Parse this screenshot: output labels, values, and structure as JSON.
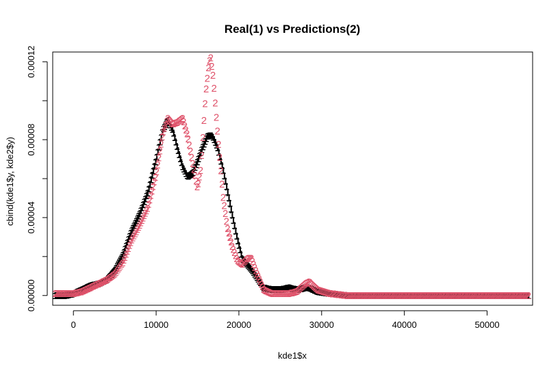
{
  "chart_data": {
    "type": "scatter",
    "title": "Real(1) vs Predictions(2)",
    "xlabel": "kde1$x",
    "ylabel": "cbind(kde1$y, kde2$y)",
    "xlim": [
      -2500,
      55500
    ],
    "ylim": [
      -5e-06,
      0.000125
    ],
    "x_ticks": [
      0,
      10000,
      20000,
      30000,
      40000,
      50000
    ],
    "x_tick_labels": [
      "0",
      "10000",
      "20000",
      "30000",
      "40000",
      "50000"
    ],
    "y_ticks": [
      0,
      2e-05,
      4e-05,
      6e-05,
      8e-05,
      0.0001,
      0.00012
    ],
    "y_tick_labels": [
      "0.00000",
      "0.00004",
      "0.00008",
      "0.00012"
    ],
    "y_labeled_ticks": [
      0,
      4e-05,
      8e-05,
      0.00012
    ],
    "grid": false,
    "series": [
      {
        "marker": "1",
        "color": "#000000",
        "points": [
          [
            -2200,
            0.0
          ],
          [
            -1000,
            0.0
          ],
          [
            0,
            1e-06
          ],
          [
            1000,
            3e-06
          ],
          [
            2000,
            5e-06
          ],
          [
            3000,
            6e-06
          ],
          [
            4000,
            8e-06
          ],
          [
            5000,
            1.3e-05
          ],
          [
            6000,
            2.1e-05
          ],
          [
            7000,
            3.3e-05
          ],
          [
            8000,
            4.2e-05
          ],
          [
            9000,
            5.3e-05
          ],
          [
            10000,
            7e-05
          ],
          [
            10800,
            8.5e-05
          ],
          [
            11400,
            9e-05
          ],
          [
            12000,
            8.5e-05
          ],
          [
            12600,
            7.5e-05
          ],
          [
            13200,
            6.6e-05
          ],
          [
            13800,
            6.1e-05
          ],
          [
            14400,
            6.3e-05
          ],
          [
            15000,
            6.9e-05
          ],
          [
            15600,
            7.6e-05
          ],
          [
            16200,
            8.2e-05
          ],
          [
            16800,
            8.2e-05
          ],
          [
            17400,
            7.6e-05
          ],
          [
            18000,
            6.6e-05
          ],
          [
            18600,
            5.4e-05
          ],
          [
            19200,
            4.1e-05
          ],
          [
            19800,
            2.9e-05
          ],
          [
            20400,
            1.9e-05
          ],
          [
            21000,
            1.6e-05
          ],
          [
            21600,
            1.3e-05
          ],
          [
            22200,
            9e-06
          ],
          [
            23000,
            4e-06
          ],
          [
            24000,
            3e-06
          ],
          [
            25000,
            3e-06
          ],
          [
            26000,
            4e-06
          ],
          [
            27000,
            3e-06
          ],
          [
            28000,
            4e-06
          ],
          [
            28500,
            4e-06
          ],
          [
            29500,
            2e-06
          ],
          [
            31000,
            1e-06
          ],
          [
            33000,
            0.0
          ],
          [
            38000,
            0.0
          ],
          [
            44000,
            0.0
          ],
          [
            50000,
            0.0
          ],
          [
            55000,
            0.0
          ]
        ]
      },
      {
        "marker": "2",
        "color": "#df536b",
        "points": [
          [
            -2200,
            1e-06
          ],
          [
            -1000,
            1e-06
          ],
          [
            0,
            1e-06
          ],
          [
            1000,
            2e-06
          ],
          [
            2000,
            4e-06
          ],
          [
            3000,
            6e-06
          ],
          [
            4000,
            8e-06
          ],
          [
            5000,
            1.1e-05
          ],
          [
            6000,
            1.7e-05
          ],
          [
            7000,
            2.8e-05
          ],
          [
            8000,
            3.6e-05
          ],
          [
            9000,
            4.5e-05
          ],
          [
            10000,
            6.2e-05
          ],
          [
            10800,
            8.3e-05
          ],
          [
            11400,
            9.1e-05
          ],
          [
            12000,
            8.8e-05
          ],
          [
            12600,
            8.9e-05
          ],
          [
            13200,
            9.1e-05
          ],
          [
            13800,
            8.2e-05
          ],
          [
            14400,
            6.8e-05
          ],
          [
            15000,
            5.5e-05
          ],
          [
            15400,
            6.5e-05
          ],
          [
            15700,
            8.5e-05
          ],
          [
            16000,
            0.000104
          ],
          [
            16400,
            0.00012
          ],
          [
            16600,
            0.000122
          ],
          [
            16900,
            0.000112
          ],
          [
            17300,
            9e-05
          ],
          [
            17700,
            7e-05
          ],
          [
            18100,
            5e-05
          ],
          [
            18600,
            3.5e-05
          ],
          [
            19200,
            2.5e-05
          ],
          [
            19800,
            1.8e-05
          ],
          [
            20400,
            1.6e-05
          ],
          [
            21000,
            1.9e-05
          ],
          [
            21500,
            1.9e-05
          ],
          [
            22100,
            1.2e-05
          ],
          [
            23000,
            3e-06
          ],
          [
            24000,
            1e-06
          ],
          [
            25000,
            1e-06
          ],
          [
            26000,
            1e-06
          ],
          [
            27000,
            2e-06
          ],
          [
            28000,
            6e-06
          ],
          [
            28500,
            7e-06
          ],
          [
            29500,
            3e-06
          ],
          [
            31000,
            1e-06
          ],
          [
            33000,
            0.0
          ],
          [
            38000,
            0.0
          ],
          [
            44000,
            0.0
          ],
          [
            50000,
            0.0
          ],
          [
            55000,
            0.0
          ]
        ]
      }
    ]
  }
}
